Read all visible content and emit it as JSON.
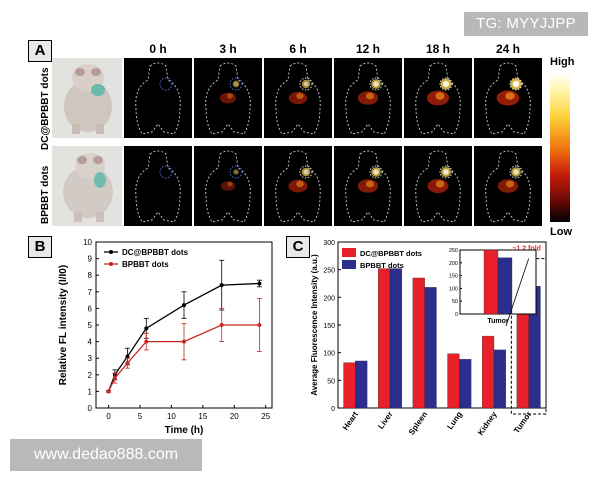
{
  "watermarks": {
    "top_right": "TG: MYYJJPP",
    "bottom_left": "www.dedao888.com"
  },
  "panel_a": {
    "letter": "A",
    "time_points": [
      "0 h",
      "3 h",
      "6 h",
      "12 h",
      "18 h",
      "24 h"
    ],
    "rows": [
      "DC@BPBBT dots",
      "BPBBT dots"
    ],
    "colorbar": {
      "high": "High",
      "low": "Low"
    }
  },
  "panel_b": {
    "letter": "B"
  },
  "panel_c": {
    "letter": "C"
  },
  "chart_data": [
    {
      "type": "line",
      "panel": "B",
      "xlabel": "Time (h)",
      "ylabel": "Relative FL intensity (I/I0)",
      "xlim": [
        -2,
        26
      ],
      "ylim": [
        0,
        10
      ],
      "xticks": [
        0,
        5,
        10,
        15,
        20,
        25
      ],
      "yticks": [
        0,
        1,
        2,
        3,
        4,
        5,
        6,
        7,
        8,
        9,
        10
      ],
      "legend_position": "top-left",
      "series": [
        {
          "name": "DC@BPBBT dots",
          "color": "#000000",
          "x": [
            0,
            1,
            3,
            6,
            12,
            18,
            24
          ],
          "y": [
            1.0,
            2.0,
            3.1,
            4.8,
            6.2,
            7.4,
            7.5
          ],
          "err": [
            0.05,
            0.3,
            0.5,
            0.6,
            0.8,
            1.5,
            0.2
          ]
        },
        {
          "name": "BPBBT dots",
          "color": "#c62828",
          "x": [
            0,
            1,
            3,
            6,
            12,
            18,
            24
          ],
          "y": [
            1.0,
            1.8,
            2.7,
            4.0,
            4.0,
            5.0,
            5.0
          ],
          "err": [
            0.05,
            0.3,
            0.3,
            0.5,
            1.1,
            1.0,
            1.6
          ]
        }
      ]
    },
    {
      "type": "bar",
      "panel": "C",
      "ylabel": "Average Fluorescence Intensity (a.u.)",
      "categories": [
        "Heart",
        "Liver",
        "Spleen",
        "Lung",
        "Kidney",
        "Tumor"
      ],
      "ylim": [
        0,
        300
      ],
      "yticks": [
        0,
        50,
        100,
        150,
        200,
        250,
        300
      ],
      "legend_position": "top-left",
      "series": [
        {
          "name": "DC@BPBBT dots",
          "color": "#e8202a",
          "values": [
            82,
            252,
            235,
            98,
            130,
            250
          ]
        },
        {
          "name": "BPBBT dots",
          "color": "#2b2e8c",
          "values": [
            85,
            252,
            218,
            88,
            105,
            220
          ]
        }
      ],
      "inset": {
        "category": "Tumor",
        "ylim": [
          0,
          250
        ],
        "yticks": [
          0,
          50,
          100,
          150,
          200,
          250
        ],
        "values": [
          250,
          220
        ]
      },
      "annotation": "~1.2 fold"
    }
  ]
}
